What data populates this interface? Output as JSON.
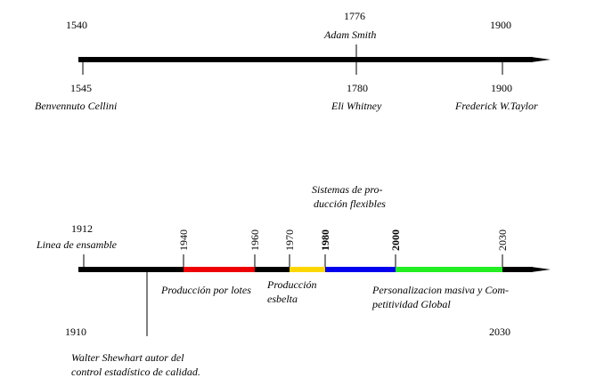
{
  "colors": {
    "axis": "#000000",
    "red": "#ee0000",
    "yellow": "#ffd700",
    "blue": "#0000ee",
    "green": "#22ee22"
  },
  "timeline1": {
    "top_years": {
      "start": "1540",
      "mid": "1776",
      "end": "1900"
    },
    "top_label_mid": "Adam Smith",
    "events": [
      {
        "year": "1545",
        "name": "Benvennuto Cellini"
      },
      {
        "year": "1780",
        "name": "Eli Whitney"
      },
      {
        "year": "1900",
        "name": "Frederick W.Taylor"
      }
    ]
  },
  "timeline2": {
    "start_year": "1912",
    "start_label": "Linea de ensamble",
    "left_year": "1910",
    "right_year": "2030",
    "shewhart_label": "Walter Shewhart autor del control estadístico de calidad.",
    "shewhart_line1": "Walter Shewhart autor del",
    "shewhart_line2": "control estadístico de calidad.",
    "tick_years": [
      "1940",
      "1960",
      "1970",
      "1980",
      "2000",
      "2030"
    ],
    "bold_years": [
      "1980",
      "2000"
    ],
    "segments": [
      {
        "from": 1940,
        "to": 1960,
        "color": "red"
      },
      {
        "from": 1970,
        "to": 1980,
        "color": "yellow"
      },
      {
        "from": 1980,
        "to": 2000,
        "color": "blue"
      },
      {
        "from": 2000,
        "to": 2030,
        "color": "green"
      }
    ],
    "labels": {
      "lotes": "Producción por lotes",
      "esbelta_1": "Producción",
      "esbelta_2": "esbelta",
      "flexibles_1": "Sistemas de pro-",
      "flexibles_2": "ducción flexibles",
      "masiva_1": "Personalizacion masiva y Com-",
      "masiva_2": "petitividad Global"
    }
  }
}
